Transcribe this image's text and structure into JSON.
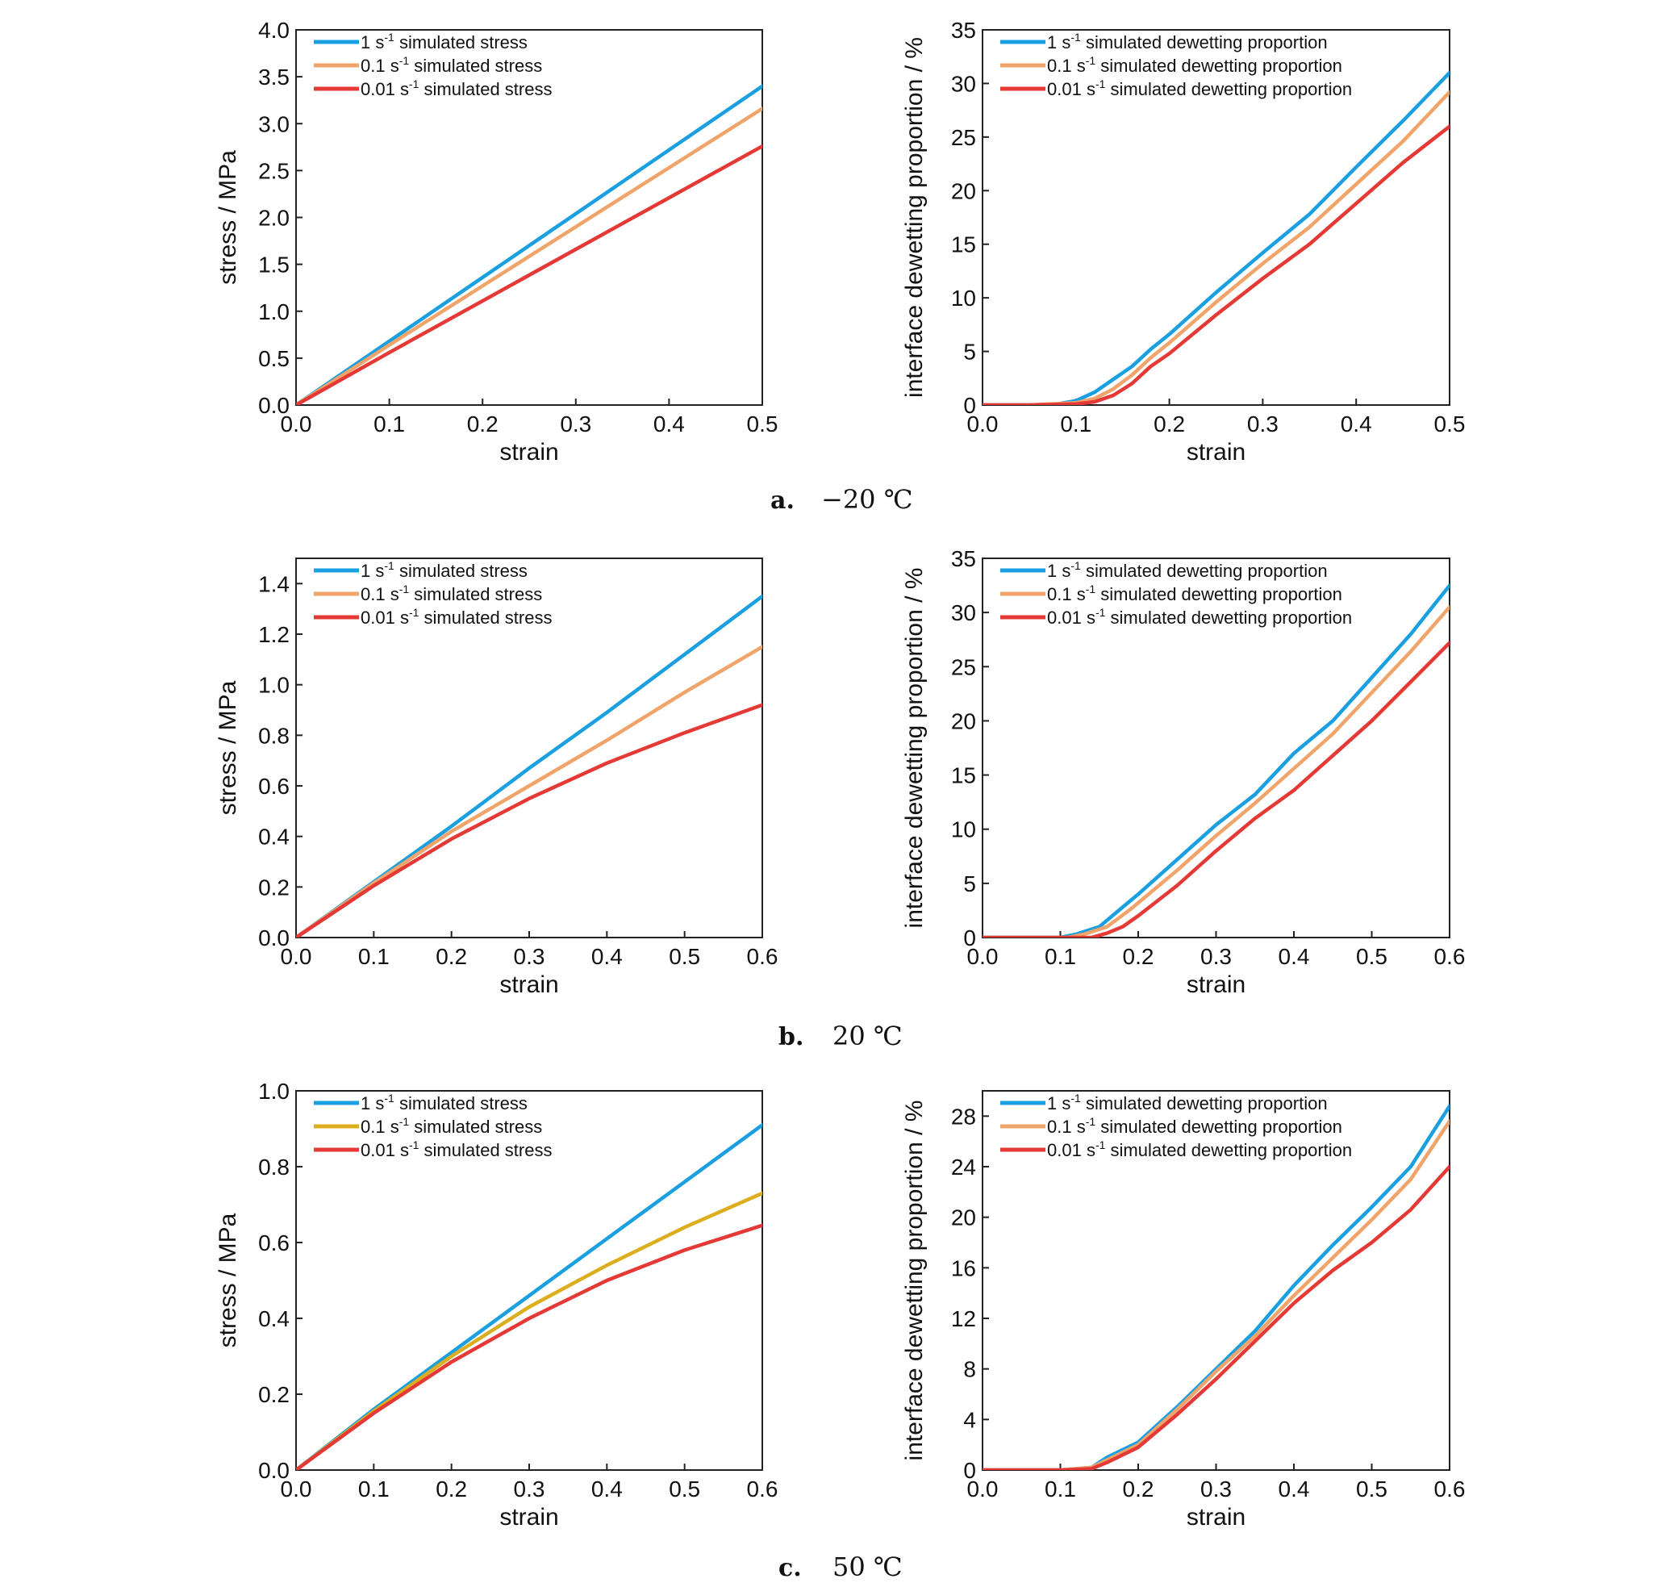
{
  "colors": {
    "rate_1": "#1a9fe0",
    "rate_01": "#f0a46a",
    "rate_01_alt": "#dcae1d",
    "rate_001": "#e53935"
  },
  "panels": [
    {
      "caption": {
        "letter": "a.",
        "temp": "−20 ℃"
      }
    },
    {
      "caption": {
        "letter": "b.",
        "temp": "20 ℃"
      }
    },
    {
      "caption": {
        "letter": "c.",
        "temp": "50 ℃"
      }
    }
  ],
  "chart_data": [
    {
      "type": "line",
      "row": 0,
      "col": 0,
      "xlabel": "strain",
      "ylabel": "stress / MPa",
      "xlim": [
        0,
        0.5
      ],
      "ylim": [
        0,
        4.0
      ],
      "xticks": [
        "0.0",
        "0.1",
        "0.2",
        "0.3",
        "0.4",
        "0.5"
      ],
      "yticks": [
        "0.0",
        "0.5",
        "1.0",
        "1.5",
        "2.0",
        "2.5",
        "3.0",
        "3.5",
        "4.0"
      ],
      "legend": "top-left",
      "grid": false,
      "series": [
        {
          "name": "1 s-1 simulated stress",
          "rate": "1",
          "text": "simulated stress",
          "color": "#1a9fe0",
          "x": [
            0,
            0.1,
            0.2,
            0.3,
            0.4,
            0.5
          ],
          "y": [
            0,
            0.68,
            1.36,
            2.04,
            2.72,
            3.4
          ]
        },
        {
          "name": "0.1 s-1 simulated stress",
          "rate": "0.1",
          "text": "simulated stress",
          "color": "#f0a46a",
          "x": [
            0,
            0.1,
            0.2,
            0.3,
            0.4,
            0.5
          ],
          "y": [
            0,
            0.64,
            1.27,
            1.9,
            2.53,
            3.16
          ]
        },
        {
          "name": "0.01 s-1 simulated stress",
          "rate": "0.01",
          "text": "simulated stress",
          "color": "#e53935",
          "x": [
            0,
            0.1,
            0.2,
            0.3,
            0.4,
            0.5
          ],
          "y": [
            0,
            0.56,
            1.11,
            1.66,
            2.21,
            2.76
          ]
        }
      ]
    },
    {
      "type": "line",
      "row": 0,
      "col": 1,
      "xlabel": "strain",
      "ylabel": "interface dewetting proportion / %",
      "xlim": [
        0,
        0.5
      ],
      "ylim": [
        0,
        35
      ],
      "xticks": [
        "0.0",
        "0.1",
        "0.2",
        "0.3",
        "0.4",
        "0.5"
      ],
      "yticks": [
        "0",
        "5",
        "10",
        "15",
        "20",
        "25",
        "30",
        "35"
      ],
      "legend": "top-left",
      "grid": false,
      "series": [
        {
          "name": "1 s-1 simulated dewetting proportion",
          "rate": "1",
          "text": "simulated dewetting proportion",
          "color": "#1a9fe0",
          "x": [
            0,
            0.05,
            0.08,
            0.1,
            0.12,
            0.14,
            0.16,
            0.18,
            0.2,
            0.25,
            0.3,
            0.35,
            0.4,
            0.45,
            0.5
          ],
          "y": [
            0,
            0,
            0.1,
            0.4,
            1.2,
            2.4,
            3.6,
            5.2,
            6.6,
            10.5,
            14.2,
            17.8,
            22.2,
            26.5,
            31
          ]
        },
        {
          "name": "0.1 s-1 simulated dewetting proportion",
          "rate": "0.1",
          "text": "simulated dewetting proportion",
          "color": "#f0a46a",
          "x": [
            0,
            0.05,
            0.1,
            0.12,
            0.14,
            0.16,
            0.18,
            0.2,
            0.25,
            0.3,
            0.35,
            0.4,
            0.45,
            0.5
          ],
          "y": [
            0,
            0,
            0.2,
            0.6,
            1.5,
            2.8,
            4.4,
            5.8,
            9.6,
            13.2,
            16.6,
            20.6,
            24.6,
            29.2
          ]
        },
        {
          "name": "0.01 s-1 simulated dewetting proportion",
          "rate": "0.01",
          "text": "simulated dewetting proportion",
          "color": "#e53935",
          "x": [
            0,
            0.05,
            0.1,
            0.12,
            0.14,
            0.16,
            0.18,
            0.2,
            0.25,
            0.3,
            0.35,
            0.4,
            0.45,
            0.5
          ],
          "y": [
            0,
            0,
            0.1,
            0.3,
            0.9,
            2.0,
            3.6,
            4.8,
            8.4,
            11.8,
            15.0,
            18.8,
            22.6,
            26
          ]
        }
      ]
    },
    {
      "type": "line",
      "row": 1,
      "col": 0,
      "xlabel": "strain",
      "ylabel": "stress / MPa",
      "xlim": [
        0,
        0.6
      ],
      "ylim": [
        0,
        1.5
      ],
      "xticks": [
        "0.0",
        "0.1",
        "0.2",
        "0.3",
        "0.4",
        "0.5",
        "0.6"
      ],
      "yticks": [
        "0.0",
        "0.2",
        "0.4",
        "0.6",
        "0.8",
        "1.0",
        "1.2",
        "1.4"
      ],
      "legend": "top-left",
      "grid": false,
      "series": [
        {
          "name": "1 s-1 simulated stress",
          "rate": "1",
          "text": "simulated stress",
          "color": "#1a9fe0",
          "x": [
            0,
            0.1,
            0.2,
            0.3,
            0.4,
            0.5,
            0.6
          ],
          "y": [
            0,
            0.22,
            0.44,
            0.67,
            0.89,
            1.12,
            1.35
          ]
        },
        {
          "name": "0.1 s-1 simulated stress",
          "rate": "0.1",
          "text": "simulated stress",
          "color": "#f0a46a",
          "x": [
            0,
            0.1,
            0.2,
            0.3,
            0.4,
            0.5,
            0.6
          ],
          "y": [
            0,
            0.215,
            0.42,
            0.6,
            0.78,
            0.97,
            1.15
          ]
        },
        {
          "name": "0.01 s-1 simulated stress",
          "rate": "0.01",
          "text": "simulated stress",
          "color": "#e53935",
          "x": [
            0,
            0.1,
            0.2,
            0.3,
            0.4,
            0.5,
            0.6
          ],
          "y": [
            0,
            0.205,
            0.39,
            0.55,
            0.69,
            0.81,
            0.92
          ]
        }
      ]
    },
    {
      "type": "line",
      "row": 1,
      "col": 1,
      "xlabel": "strain",
      "ylabel": "interface dewetting proportion / %",
      "xlim": [
        0,
        0.6
      ],
      "ylim": [
        0,
        35
      ],
      "xticks": [
        "0.0",
        "0.1",
        "0.2",
        "0.3",
        "0.4",
        "0.5",
        "0.6"
      ],
      "yticks": [
        "0",
        "5",
        "10",
        "15",
        "20",
        "25",
        "30",
        "35"
      ],
      "legend": "top-left",
      "grid": false,
      "series": [
        {
          "name": "1 s-1 simulated dewetting proportion",
          "rate": "1",
          "text": "simulated dewetting proportion",
          "color": "#1a9fe0",
          "x": [
            0,
            0.1,
            0.12,
            0.15,
            0.18,
            0.2,
            0.25,
            0.3,
            0.35,
            0.4,
            0.45,
            0.5,
            0.55,
            0.6
          ],
          "y": [
            0,
            0,
            0.3,
            1.0,
            2.8,
            4.0,
            7.2,
            10.4,
            13.2,
            17.0,
            20.0,
            24.0,
            28.0,
            32.5
          ]
        },
        {
          "name": "0.1 s-1 simulated dewetting proportion",
          "rate": "0.1",
          "text": "simulated dewetting proportion",
          "color": "#f0a46a",
          "x": [
            0,
            0.11,
            0.13,
            0.16,
            0.19,
            0.2,
            0.25,
            0.3,
            0.35,
            0.4,
            0.45,
            0.5,
            0.55,
            0.6
          ],
          "y": [
            0,
            0,
            0.3,
            1.0,
            2.6,
            3.2,
            6.2,
            9.4,
            12.4,
            15.6,
            18.8,
            22.6,
            26.4,
            30.5
          ]
        },
        {
          "name": "0.01 s-1 simulated dewetting proportion",
          "rate": "0.01",
          "text": "simulated dewetting proportion",
          "color": "#e53935",
          "x": [
            0,
            0.14,
            0.16,
            0.18,
            0.2,
            0.25,
            0.3,
            0.35,
            0.4,
            0.45,
            0.5,
            0.55,
            0.6
          ],
          "y": [
            0,
            0,
            0.4,
            1.0,
            2.0,
            4.8,
            8.0,
            11.0,
            13.6,
            16.8,
            20.0,
            23.6,
            27.2
          ]
        }
      ]
    },
    {
      "type": "line",
      "row": 2,
      "col": 0,
      "xlabel": "strain",
      "ylabel": "stress / MPa",
      "xlim": [
        0,
        0.6
      ],
      "ylim": [
        0,
        1.0
      ],
      "xticks": [
        "0.0",
        "0.1",
        "0.2",
        "0.3",
        "0.4",
        "0.5",
        "0.6"
      ],
      "yticks": [
        "0.0",
        "0.2",
        "0.4",
        "0.6",
        "0.8",
        "1.0"
      ],
      "legend": "top-left",
      "grid": false,
      "series": [
        {
          "name": "1 s-1 simulated stress",
          "rate": "1",
          "text": "simulated stress",
          "color": "#1a9fe0",
          "x": [
            0,
            0.1,
            0.2,
            0.3,
            0.4,
            0.5,
            0.6
          ],
          "y": [
            0,
            0.16,
            0.31,
            0.46,
            0.61,
            0.76,
            0.91
          ]
        },
        {
          "name": "0.1 s-1 simulated stress",
          "rate": "0.1",
          "text": "simulated stress",
          "color": "#dcae1d",
          "x": [
            0,
            0.1,
            0.2,
            0.3,
            0.4,
            0.5,
            0.6
          ],
          "y": [
            0,
            0.155,
            0.3,
            0.43,
            0.54,
            0.64,
            0.73
          ]
        },
        {
          "name": "0.01 s-1 simulated stress",
          "rate": "0.01",
          "text": "simulated stress",
          "color": "#e53935",
          "x": [
            0,
            0.1,
            0.2,
            0.3,
            0.4,
            0.5,
            0.6
          ],
          "y": [
            0,
            0.15,
            0.285,
            0.4,
            0.5,
            0.58,
            0.645
          ]
        }
      ]
    },
    {
      "type": "line",
      "row": 2,
      "col": 1,
      "xlabel": "strain",
      "ylabel": "interface dewetting proportion / %",
      "xlim": [
        0,
        0.6
      ],
      "ylim": [
        0,
        30
      ],
      "xticks": [
        "0.0",
        "0.1",
        "0.2",
        "0.3",
        "0.4",
        "0.5",
        "0.6"
      ],
      "yticks": [
        "0",
        "4",
        "8",
        "12",
        "16",
        "20",
        "24",
        "28"
      ],
      "legend": "top-left",
      "grid": false,
      "series": [
        {
          "name": "1 s-1 simulated dewetting proportion",
          "rate": "1",
          "text": "simulated dewetting proportion",
          "color": "#1a9fe0",
          "x": [
            0,
            0.1,
            0.14,
            0.16,
            0.2,
            0.25,
            0.3,
            0.35,
            0.4,
            0.45,
            0.5,
            0.55,
            0.6
          ],
          "y": [
            0,
            0,
            0.2,
            1.0,
            2.2,
            5.0,
            8.0,
            11.0,
            14.6,
            17.8,
            20.8,
            24.0,
            28.8
          ]
        },
        {
          "name": "0.1 s-1 simulated dewetting proportion",
          "rate": "0.1",
          "text": "simulated dewetting proportion",
          "color": "#f0a46a",
          "x": [
            0,
            0.1,
            0.14,
            0.16,
            0.2,
            0.25,
            0.3,
            0.35,
            0.4,
            0.45,
            0.5,
            0.55,
            0.6
          ],
          "y": [
            0,
            0,
            0.2,
            0.8,
            2.0,
            4.8,
            7.8,
            10.6,
            13.8,
            16.8,
            19.8,
            23.0,
            27.6
          ]
        },
        {
          "name": "0.01 s-1 simulated dewetting proportion",
          "rate": "0.01",
          "text": "simulated dewetting proportion",
          "color": "#e53935",
          "x": [
            0,
            0.1,
            0.14,
            0.16,
            0.2,
            0.25,
            0.3,
            0.35,
            0.4,
            0.45,
            0.5,
            0.55,
            0.6
          ],
          "y": [
            0,
            0,
            0.1,
            0.6,
            1.8,
            4.4,
            7.2,
            10.2,
            13.2,
            15.8,
            18.0,
            20.6,
            24.0
          ]
        }
      ]
    }
  ]
}
